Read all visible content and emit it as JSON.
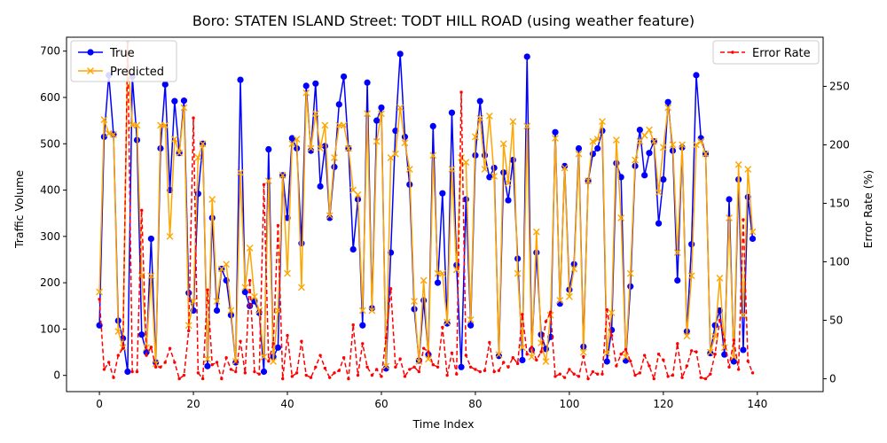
{
  "chart_data": {
    "type": "line",
    "title": "Boro: STATEN ISLAND Street: TODT HILL ROAD (using weather feature)",
    "xlabel": "Time Index",
    "ylabel": "Traffic Volume",
    "y2label": "Error Rate (%)",
    "xlim": [
      -7,
      154
    ],
    "ylim": [
      -35,
      730
    ],
    "y2lim": [
      -11,
      292
    ],
    "xticks": [
      0,
      20,
      40,
      60,
      80,
      100,
      120,
      140
    ],
    "yticks": [
      0,
      100,
      200,
      300,
      400,
      500,
      600,
      700
    ],
    "y2ticks": [
      0,
      50,
      100,
      150,
      200,
      250
    ],
    "legend_left": {
      "position": "upper-left",
      "entries": [
        "True",
        "Predicted"
      ]
    },
    "legend_right": {
      "position": "upper-right",
      "entries": [
        "Error Rate"
      ]
    },
    "colors": {
      "true": "#0000ff",
      "predicted": "#ffa500",
      "error": "#ff0000",
      "axes": "#000000"
    },
    "series": [
      {
        "name": "True",
        "axis": "left",
        "values": [
          108,
          515,
          648,
          520,
          118,
          80,
          8,
          645,
          508,
          88,
          50,
          295,
          28,
          490,
          628,
          400,
          592,
          480,
          593,
          178,
          140,
          392,
          500,
          20,
          340,
          140,
          230,
          205,
          130,
          28,
          638,
          180,
          150,
          160,
          135,
          8,
          488,
          40,
          60,
          432,
          340,
          512,
          490,
          285,
          625,
          485,
          630,
          408,
          495,
          340,
          450,
          585,
          645,
          490,
          272,
          380,
          108,
          632,
          145,
          550,
          578,
          15,
          265,
          528,
          694,
          515,
          412,
          143,
          32,
          162,
          45,
          538,
          200,
          393,
          112,
          567,
          238,
          18,
          380,
          108,
          475,
          592,
          475,
          428,
          448,
          42,
          438,
          378,
          465,
          252,
          33,
          688,
          55,
          265,
          88,
          57,
          83,
          525,
          155,
          452,
          185,
          240,
          490,
          62,
          420,
          478,
          490,
          528,
          30,
          98,
          458,
          428,
          32,
          192,
          452,
          530,
          432,
          480,
          505,
          328,
          423,
          590,
          485,
          205,
          492,
          95,
          283,
          648,
          512,
          478,
          48,
          108,
          140,
          45,
          380,
          30,
          423,
          55,
          385,
          295
        ]
      },
      {
        "name": "Predicted",
        "axis": "left",
        "values": [
          180,
          552,
          522,
          520,
          95,
          60,
          695,
          540,
          540,
          215,
          60,
          215,
          25,
          540,
          540,
          300,
          510,
          480,
          578,
          108,
          160,
          470,
          500,
          35,
          380,
          160,
          230,
          240,
          140,
          30,
          438,
          190,
          275,
          170,
          140,
          40,
          420,
          30,
          140,
          432,
          220,
          500,
          510,
          190,
          610,
          490,
          565,
          490,
          540,
          345,
          470,
          540,
          540,
          490,
          400,
          390,
          140,
          565,
          140,
          505,
          565,
          20,
          470,
          478,
          578,
          502,
          445,
          160,
          30,
          205,
          35,
          475,
          220,
          220,
          115,
          445,
          228,
          470,
          460,
          120,
          515,
          555,
          445,
          560,
          430,
          45,
          500,
          415,
          548,
          220,
          60,
          538,
          40,
          310,
          70,
          30,
          130,
          512,
          162,
          448,
          170,
          230,
          478,
          50,
          420,
          505,
          510,
          548,
          48,
          135,
          508,
          340,
          40,
          220,
          465,
          505,
          518,
          530,
          505,
          395,
          492,
          578,
          498,
          265,
          498,
          85,
          215,
          498,
          505,
          478,
          50,
          85,
          210,
          60,
          340,
          40,
          455,
          130,
          445,
          310
        ]
      },
      {
        "name": "Error Rate",
        "axis": "right",
        "values": [
          68,
          8,
          14,
          1,
          20,
          26,
          288,
          6,
          6,
          144,
          20,
          27,
          10,
          10,
          14,
          26,
          14,
          0,
          3,
          41,
          223,
          5,
          0,
          76,
          12,
          14,
          0,
          18,
          8,
          6,
          32,
          5,
          84,
          6,
          4,
          166,
          15,
          30,
          131,
          0,
          37,
          2,
          5,
          32,
          3,
          1,
          10,
          20,
          9,
          1,
          5,
          7,
          18,
          0,
          46,
          3,
          30,
          10,
          3,
          8,
          2,
          35,
          77,
          10,
          17,
          2,
          8,
          10,
          6,
          26,
          23,
          12,
          10,
          44,
          3,
          22,
          4,
          245,
          20,
          10,
          8,
          6,
          7,
          31,
          6,
          7,
          14,
          10,
          18,
          13,
          55,
          21,
          27,
          16,
          23,
          49,
          57,
          2,
          4,
          1,
          8,
          4,
          2,
          19,
          0,
          6,
          4,
          4,
          59,
          37,
          11,
          21,
          25,
          15,
          3,
          5,
          20,
          11,
          0,
          21,
          16,
          2,
          3,
          30,
          1,
          11,
          24,
          23,
          1,
          0,
          4,
          21,
          50,
          33,
          10,
          33,
          8,
          136,
          15,
          5
        ]
      }
    ]
  }
}
